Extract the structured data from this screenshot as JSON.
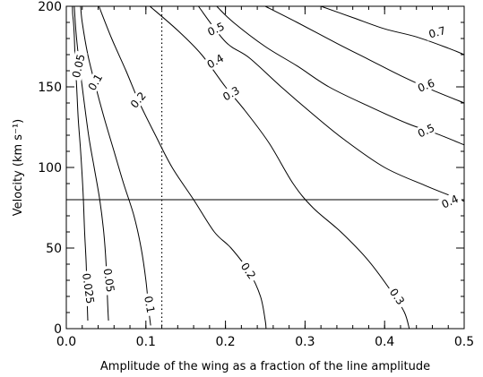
{
  "chart_data": {
    "type": "contour",
    "title": "",
    "xlabel": "Amplitude of the wing as a fraction of the line amplitude",
    "ylabel": "Velocity (km s⁻¹)",
    "xlim": [
      0.0,
      0.5
    ],
    "ylim": [
      0,
      200
    ],
    "x_ticks": [
      {
        "value": 0.0,
        "label": "0.0"
      },
      {
        "value": 0.1,
        "label": "0.1"
      },
      {
        "value": 0.2,
        "label": "0.2"
      },
      {
        "value": 0.3,
        "label": "0.3"
      },
      {
        "value": 0.4,
        "label": "0.4"
      },
      {
        "value": 0.5,
        "label": "0.5"
      }
    ],
    "y_ticks": [
      {
        "value": 0,
        "label": "0"
      },
      {
        "value": 50,
        "label": "50"
      },
      {
        "value": 100,
        "label": "100"
      },
      {
        "value": 150,
        "label": "150"
      },
      {
        "value": 200,
        "label": "200"
      }
    ],
    "grid": false,
    "reference_lines": [
      {
        "orientation": "horizontal",
        "value": 80,
        "style": "solid"
      },
      {
        "orientation": "vertical",
        "value": 0.12,
        "style": "dotted"
      }
    ],
    "contours": [
      {
        "level": "0.025",
        "points": [
          [
            0.0077,
            200
          ],
          [
            0.008,
            195
          ],
          [
            0.009,
            190
          ],
          [
            0.01,
            182
          ],
          [
            0.011,
            168
          ],
          [
            0.013,
            150
          ],
          [
            0.015,
            130
          ],
          [
            0.018,
            110
          ],
          [
            0.021,
            85
          ],
          [
            0.023,
            60
          ],
          [
            0.025,
            40
          ],
          [
            0.026,
            20
          ],
          [
            0.027,
            5
          ]
        ],
        "labels": [
          {
            "text": "0.025",
            "x": 0.028,
            "y": 25,
            "angle": 82
          }
        ]
      },
      {
        "level": "0.05",
        "points": [
          [
            0.01,
            200
          ],
          [
            0.012,
            185
          ],
          [
            0.015,
            170
          ],
          [
            0.02,
            150
          ],
          [
            0.028,
            120
          ],
          [
            0.035,
            100
          ],
          [
            0.042,
            80
          ],
          [
            0.047,
            60
          ],
          [
            0.05,
            40
          ],
          [
            0.052,
            15
          ],
          [
            0.053,
            5
          ]
        ],
        "labels": [
          {
            "text": "0.05",
            "x": 0.015,
            "y": 163,
            "angle": -77
          },
          {
            "text": "0.05",
            "x": 0.054,
            "y": 30,
            "angle": 82
          }
        ]
      },
      {
        "level": "0.1",
        "points": [
          [
            0.018,
            200
          ],
          [
            0.02,
            190
          ],
          [
            0.027,
            170
          ],
          [
            0.037,
            150
          ],
          [
            0.048,
            130
          ],
          [
            0.06,
            110
          ],
          [
            0.072,
            90
          ],
          [
            0.085,
            70
          ],
          [
            0.094,
            50
          ],
          [
            0.1,
            30
          ],
          [
            0.104,
            10
          ],
          [
            0.106,
            2
          ]
        ],
        "labels": [
          {
            "text": "0.1",
            "x": 0.036,
            "y": 153,
            "angle": -60
          },
          {
            "text": "0.1",
            "x": 0.105,
            "y": 15,
            "angle": 80
          }
        ]
      },
      {
        "level": "0.2",
        "points": [
          [
            0.041,
            200
          ],
          [
            0.057,
            180
          ],
          [
            0.075,
            160
          ],
          [
            0.092,
            140
          ],
          [
            0.112,
            120
          ],
          [
            0.133,
            100
          ],
          [
            0.16,
            80
          ],
          [
            0.186,
            60
          ],
          [
            0.207,
            50
          ],
          [
            0.23,
            35
          ],
          [
            0.244,
            20
          ],
          [
            0.25,
            5
          ],
          [
            0.251,
            0
          ]
        ],
        "labels": [
          {
            "text": "0.2",
            "x": 0.09,
            "y": 142,
            "angle": -50
          },
          {
            "text": "0.2",
            "x": 0.229,
            "y": 36,
            "angle": 55
          }
        ]
      },
      {
        "level": "0.3",
        "points": [
          [
            0.105,
            200
          ],
          [
            0.14,
            185
          ],
          [
            0.17,
            170
          ],
          [
            0.2,
            150
          ],
          [
            0.225,
            135
          ],
          [
            0.255,
            115
          ],
          [
            0.285,
            90
          ],
          [
            0.31,
            75
          ],
          [
            0.345,
            60
          ],
          [
            0.38,
            42
          ],
          [
            0.41,
            22
          ],
          [
            0.425,
            10
          ],
          [
            0.431,
            0
          ]
        ],
        "labels": [
          {
            "text": "0.3",
            "x": 0.207,
            "y": 146,
            "angle": -30
          },
          {
            "text": "0.3",
            "x": 0.416,
            "y": 20,
            "angle": 55
          }
        ]
      },
      {
        "level": "0.4",
        "points": [
          [
            0.166,
            200
          ],
          [
            0.2,
            178
          ],
          [
            0.23,
            168
          ],
          [
            0.27,
            150
          ],
          [
            0.31,
            133
          ],
          [
            0.35,
            117
          ],
          [
            0.4,
            100
          ],
          [
            0.45,
            89
          ],
          [
            0.48,
            83
          ],
          [
            0.5,
            79
          ]
        ],
        "labels": [
          {
            "text": "0.4",
            "x": 0.187,
            "y": 166,
            "angle": -30
          },
          {
            "text": "0.4",
            "x": 0.482,
            "y": 79,
            "angle": -25
          }
        ]
      },
      {
        "level": "0.5",
        "points": [
          [
            0.189,
            200
          ],
          [
            0.21,
            190
          ],
          [
            0.25,
            175
          ],
          [
            0.29,
            163
          ],
          [
            0.33,
            150
          ],
          [
            0.38,
            138
          ],
          [
            0.43,
            127
          ],
          [
            0.465,
            121
          ],
          [
            0.5,
            114
          ]
        ],
        "labels": [
          {
            "text": "0.5",
            "x": 0.188,
            "y": 186,
            "angle": -25
          },
          {
            "text": "0.5",
            "x": 0.452,
            "y": 123,
            "angle": -25
          }
        ]
      },
      {
        "level": "0.6",
        "points": [
          [
            0.25,
            200
          ],
          [
            0.29,
            190
          ],
          [
            0.34,
            177
          ],
          [
            0.38,
            167
          ],
          [
            0.42,
            157
          ],
          [
            0.46,
            148
          ],
          [
            0.5,
            140
          ]
        ],
        "labels": [
          {
            "text": "0.6",
            "x": 0.452,
            "y": 151,
            "angle": -22
          }
        ]
      },
      {
        "level": "0.7",
        "points": [
          [
            0.32,
            200
          ],
          [
            0.36,
            193
          ],
          [
            0.4,
            186
          ],
          [
            0.44,
            181
          ],
          [
            0.48,
            174
          ],
          [
            0.5,
            170
          ]
        ],
        "labels": [
          {
            "text": "0.7",
            "x": 0.466,
            "y": 184,
            "angle": -15
          }
        ]
      }
    ]
  }
}
